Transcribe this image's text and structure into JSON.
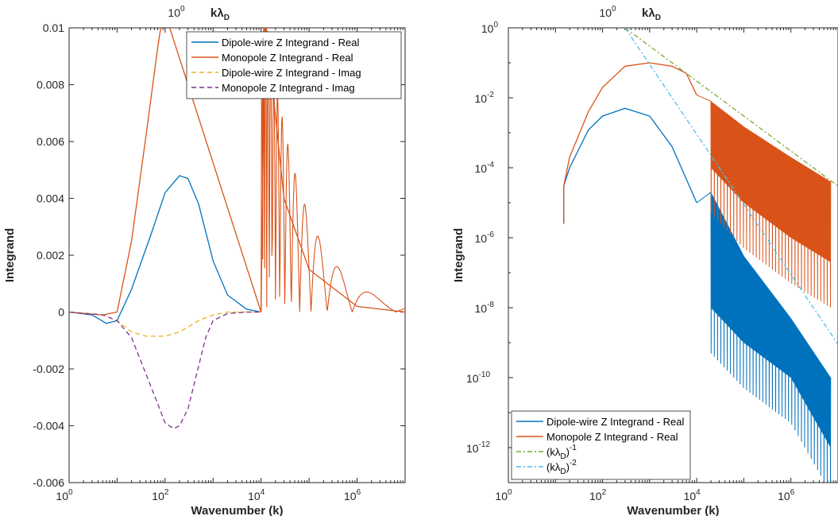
{
  "chart_data": [
    {
      "type": "line",
      "xscale": "log",
      "xlim": [
        1,
        10000000
      ],
      "ylim": [
        -0.006,
        0.01
      ],
      "xlabel": "Wavenumber (k)",
      "ylabel": "Integrand",
      "top_axis_tick": "10",
      "top_axis_tick_exp": "0",
      "top_axis_label": "kλ",
      "top_axis_label_sub": "D",
      "x_ticks": [
        {
          "base": "10",
          "exp": "0"
        },
        {
          "base": "10",
          "exp": "2"
        },
        {
          "base": "10",
          "exp": "4"
        },
        {
          "base": "10",
          "exp": "6"
        }
      ],
      "y_ticks": [
        "0.01",
        "0.008",
        "0.006",
        "0.004",
        "0.002",
        "0",
        "-0.002",
        "-0.004",
        "-0.006"
      ],
      "legend_position": "top-right",
      "series": [
        {
          "name": "Dipole-wire Z Integrand - Real",
          "color": "#0072BD",
          "style": "solid",
          "x": [
            1,
            3,
            6,
            10,
            20,
            50,
            100,
            200,
            300,
            500,
            1000,
            2000,
            5000,
            10000
          ],
          "y": [
            0,
            -0.0001,
            -0.0004,
            -0.0003,
            0.0008,
            0.0027,
            0.0042,
            0.0048,
            0.0047,
            0.0038,
            0.0018,
            0.0006,
            0.0001,
            0
          ]
        },
        {
          "name": "Monopole Z Integrand - Real",
          "color": "#D95319",
          "style": "solid",
          "x": [
            1,
            5,
            10,
            20,
            40,
            70,
            90,
            100,
            10000,
            12000,
            30000,
            100000,
            1000000,
            10000000
          ],
          "y": [
            0,
            -0.0001,
            0,
            0.0025,
            0.0062,
            0.0093,
            0.0105,
            0.0105,
            0,
            0.0105,
            0.004,
            0.0015,
            0.0002,
            0
          ]
        },
        {
          "name": "Dipole-wire Z Integrand - Imag",
          "color": "#EDB120",
          "style": "dashed",
          "x": [
            1,
            5,
            10,
            20,
            40,
            100,
            200,
            500,
            1000,
            2000,
            10000
          ],
          "y": [
            0,
            -0.0001,
            -0.0003,
            -0.0007,
            -0.00085,
            -0.00085,
            -0.0007,
            -0.0003,
            -0.0001,
            0,
            0
          ]
        },
        {
          "name": "Monopole Z Integrand - Imag",
          "color": "#7E2F8E",
          "style": "dashed",
          "x": [
            1,
            5,
            10,
            20,
            50,
            100,
            150,
            200,
            300,
            500,
            700,
            1000,
            2000,
            5000,
            10000
          ],
          "y": [
            0,
            -0.0001,
            -0.0003,
            -0.0009,
            -0.0026,
            -0.0039,
            -0.0041,
            -0.004,
            -0.0034,
            -0.0019,
            -0.0009,
            -0.0003,
            -5e-05,
            0,
            0
          ]
        }
      ]
    },
    {
      "type": "line",
      "xscale": "log",
      "yscale": "log",
      "xlim": [
        1,
        10000000
      ],
      "ylim": [
        1e-13,
        1
      ],
      "xlabel": "Wavenumber (k)",
      "ylabel": "Integrand",
      "top_axis_tick": "10",
      "top_axis_tick_exp": "0",
      "top_axis_label": "kλ",
      "top_axis_label_sub": "D",
      "x_ticks": [
        {
          "base": "10",
          "exp": "0"
        },
        {
          "base": "10",
          "exp": "2"
        },
        {
          "base": "10",
          "exp": "4"
        },
        {
          "base": "10",
          "exp": "6"
        }
      ],
      "y_ticks": [
        {
          "base": "10",
          "exp": "0"
        },
        {
          "base": "10",
          "exp": "-2"
        },
        {
          "base": "10",
          "exp": "-4"
        },
        {
          "base": "10",
          "exp": "-6"
        },
        {
          "base": "10",
          "exp": "-8"
        },
        {
          "base": "10",
          "exp": "-10"
        },
        {
          "base": "10",
          "exp": "-12"
        }
      ],
      "legend_position": "bottom-left",
      "series": [
        {
          "name": "Dipole-wire Z Integrand - Real",
          "color": "#0072BD",
          "style": "solid",
          "x": [
            15,
            15,
            20,
            50,
            100,
            300,
            1000,
            3000,
            10000
          ],
          "y": [
            2.5e-06,
            3e-05,
            0.0001,
            0.0012,
            0.003,
            0.005,
            0.003,
            0.0004,
            1e-05
          ],
          "envelope_top": [
            [
              20000,
              2e-05
            ],
            [
              100000,
              3e-07
            ],
            [
              1000000,
              5e-09
            ],
            [
              7000000,
              1e-10
            ]
          ],
          "envelope_bottom": [
            [
              20000,
              1e-08
            ],
            [
              100000,
              1e-09
            ],
            [
              1000000,
              1e-10
            ],
            [
              7000000,
              1e-12
            ]
          ]
        },
        {
          "name": "Monopole Z Integrand - Real",
          "color": "#D95319",
          "style": "solid",
          "x": [
            15,
            15,
            20,
            50,
            100,
            300,
            1000,
            3000,
            6000,
            10000
          ],
          "y": [
            2.5e-06,
            3e-05,
            0.0002,
            0.004,
            0.02,
            0.08,
            0.1,
            0.08,
            0.05,
            0.012
          ],
          "envelope_top": [
            [
              20000,
              0.008
            ],
            [
              100000,
              0.0015
            ],
            [
              1000000,
              0.0002
            ],
            [
              7000000,
              4e-05
            ]
          ],
          "envelope_bottom": [
            [
              20000,
              0.0001
            ],
            [
              100000,
              1e-05
            ],
            [
              1000000,
              1e-06
            ],
            [
              7000000,
              2e-07
            ]
          ]
        },
        {
          "name": "(kλ",
          "name_sub": "D",
          "name_tail": ")",
          "name_exp": "-1",
          "color": "#77AC30",
          "style": "dashdot",
          "x": [
            300,
            10000000
          ],
          "y": [
            1,
            3e-05
          ]
        },
        {
          "name": "(kλ",
          "name_sub": "D",
          "name_tail": ")",
          "name_exp": "-2",
          "color": "#4DBEEE",
          "style": "dashdot",
          "x": [
            300,
            10000000
          ],
          "y": [
            1,
            9e-10
          ]
        }
      ]
    }
  ]
}
